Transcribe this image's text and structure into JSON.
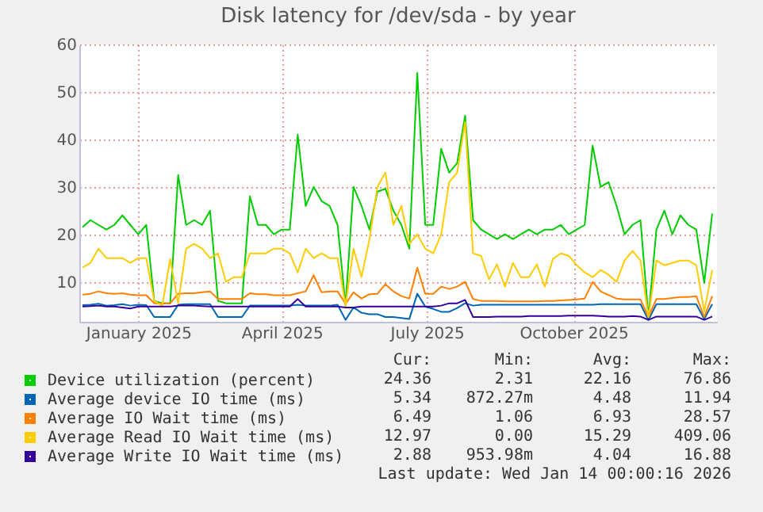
{
  "chart_data": {
    "type": "line",
    "title": "Disk latency for /dev/sda - by year",
    "x": [
      "2024-12-12",
      "2024-12-17",
      "2024-12-22",
      "2024-12-27",
      "2025-01-01",
      "2025-01-06",
      "2025-01-11",
      "2025-01-16",
      "2025-01-21",
      "2025-01-26",
      "2025-01-31",
      "2025-02-05",
      "2025-02-10",
      "2025-02-15",
      "2025-02-20",
      "2025-02-25",
      "2025-03-02",
      "2025-03-07",
      "2025-03-12",
      "2025-03-17",
      "2025-03-22",
      "2025-03-27",
      "2025-04-01",
      "2025-04-06",
      "2025-04-11",
      "2025-04-16",
      "2025-04-21",
      "2025-04-26",
      "2025-05-01",
      "2025-05-06",
      "2025-05-11",
      "2025-05-16",
      "2025-05-21",
      "2025-05-26",
      "2025-05-31",
      "2025-06-05",
      "2025-06-10",
      "2025-06-15",
      "2025-06-20",
      "2025-06-25",
      "2025-06-30",
      "2025-07-05",
      "2025-07-10",
      "2025-07-15",
      "2025-07-20",
      "2025-07-25",
      "2025-07-30",
      "2025-08-04",
      "2025-08-09",
      "2025-08-14",
      "2025-08-19",
      "2025-08-24",
      "2025-08-29",
      "2025-09-03",
      "2025-09-08",
      "2025-09-13",
      "2025-09-18",
      "2025-09-23",
      "2025-09-28",
      "2025-10-03",
      "2025-10-08",
      "2025-10-13",
      "2025-10-18",
      "2025-10-23",
      "2025-10-28",
      "2025-11-02",
      "2025-11-07",
      "2025-11-12",
      "2025-11-17",
      "2025-11-22",
      "2025-11-27",
      "2025-12-02",
      "2025-12-07",
      "2025-12-12",
      "2025-12-17",
      "2025-12-22",
      "2025-12-27",
      "2026-01-01",
      "2026-01-06",
      "2026-01-11"
    ],
    "series": [
      {
        "name": "Device utilization (percent)",
        "color": "#00cc00",
        "values": [
          21.5,
          23,
          22,
          21,
          22,
          24,
          22,
          20,
          22,
          6,
          5.5,
          5.5,
          32.5,
          22,
          23,
          22,
          25,
          6,
          5.5,
          5.5,
          5.5,
          28,
          22,
          22,
          20,
          21,
          21,
          41,
          26,
          30,
          27,
          26,
          22,
          5,
          30,
          26,
          21,
          29,
          29.6,
          25,
          22,
          17,
          54,
          22,
          22,
          38,
          33,
          35,
          45,
          23,
          21,
          20,
          19,
          20,
          19,
          20,
          21,
          20,
          21,
          21,
          22,
          20,
          21,
          22,
          38.7,
          30,
          31,
          26,
          20,
          22,
          23,
          2.6,
          21,
          25,
          20,
          24,
          22,
          21,
          9.8,
          24.4
        ]
      },
      {
        "name": "Average device IO time (ms)",
        "color": "#0066b3",
        "values": [
          5.1,
          5.2,
          5.4,
          5,
          5.1,
          5.3,
          5,
          5.2,
          5.1,
          2.6,
          2.6,
          2.6,
          5.2,
          5.3,
          5.3,
          5.3,
          5.3,
          2.6,
          2.6,
          2.6,
          2.6,
          5,
          5,
          5,
          5,
          5,
          5,
          5.2,
          5,
          5,
          5,
          5,
          5.2,
          2,
          4.6,
          3.5,
          3.2,
          3.2,
          2.6,
          2.6,
          2.4,
          2.2,
          7.5,
          4.8,
          4.3,
          3.7,
          3.7,
          4.5,
          5.5,
          5,
          5.2,
          5.2,
          5.2,
          5.2,
          5.2,
          5.2,
          5.2,
          5.2,
          5.2,
          5.2,
          5.2,
          5.2,
          5.2,
          5.2,
          5.2,
          5.3,
          5.3,
          5.3,
          5.3,
          5.3,
          5.3,
          2,
          5.3,
          5.3,
          5.3,
          5.3,
          5.3,
          5.3,
          2.2,
          5.3
        ]
      },
      {
        "name": "Average IO Wait time (ms)",
        "color": "#ff8000",
        "values": [
          7.3,
          7.5,
          8,
          7.6,
          7.5,
          7.6,
          7.3,
          7.2,
          7.2,
          5.5,
          5.5,
          5.5,
          7.5,
          7.6,
          7.6,
          7.8,
          8,
          6.4,
          6.4,
          6.4,
          6.4,
          7.6,
          7.4,
          7.4,
          7.2,
          7.2,
          7.2,
          7.6,
          8,
          11.4,
          7.8,
          8,
          8,
          5.4,
          7.8,
          6.5,
          7.4,
          7.5,
          9.5,
          8,
          7,
          6.5,
          13,
          7.5,
          7.5,
          9,
          8.5,
          9,
          10,
          6.4,
          6,
          6,
          6,
          5.9,
          5.9,
          5.9,
          5.9,
          5.9,
          6,
          6,
          6.1,
          6.2,
          6.3,
          6.5,
          10,
          8,
          7.2,
          6.5,
          6.3,
          6.3,
          6.3,
          2.6,
          6.4,
          6.4,
          6.6,
          6.8,
          6.8,
          7,
          2.6,
          7
        ]
      },
      {
        "name": "Average Read IO Wait time (ms)",
        "color": "#ffcc00",
        "values": [
          13,
          14,
          17,
          15,
          15,
          15,
          14,
          15,
          15,
          6,
          5,
          14.8,
          5.5,
          17,
          18,
          17,
          15,
          16,
          10,
          11,
          11,
          16,
          16,
          16,
          17,
          17,
          16,
          12,
          17,
          15,
          16,
          15,
          15,
          5,
          17,
          11,
          19,
          30,
          33,
          22,
          26,
          18,
          20,
          17,
          16,
          20,
          31,
          33,
          43.7,
          16,
          15.5,
          10.5,
          13.7,
          9,
          14,
          11,
          11,
          13.7,
          9,
          14.8,
          16,
          15.5,
          13.5,
          12,
          11,
          12.5,
          11.5,
          10,
          14.5,
          16.5,
          14.5,
          2.6,
          14.5,
          13.5,
          14,
          14.5,
          14.5,
          13.5,
          3.7,
          12.5
        ]
      },
      {
        "name": "Average Write IO Wait time (ms)",
        "color": "#330099",
        "values": [
          4.8,
          4.9,
          5,
          4.8,
          4.8,
          4.6,
          4.4,
          4.8,
          4.8,
          4.8,
          4.8,
          4.8,
          5,
          5,
          5,
          4.9,
          4.8,
          4.8,
          4.8,
          4.8,
          4.8,
          4.8,
          4.8,
          4.8,
          4.8,
          4.8,
          4.8,
          6.4,
          4.8,
          4.8,
          4.8,
          4.8,
          4.8,
          4.6,
          4.6,
          4.8,
          4.8,
          4.8,
          4.8,
          4.8,
          4.8,
          4.8,
          4.8,
          4.8,
          4.8,
          5,
          5.5,
          5.5,
          6.2,
          2.6,
          2.6,
          2.6,
          2.7,
          2.7,
          2.7,
          2.7,
          2.8,
          2.8,
          2.8,
          2.8,
          2.8,
          2.9,
          2.9,
          2.9,
          2.9,
          2.8,
          2.7,
          2.7,
          2.7,
          2.8,
          2.7,
          2,
          2.7,
          2.7,
          2.7,
          2.7,
          2.7,
          2.7,
          2,
          2.7
        ]
      }
    ],
    "xlim": [
      "2024-12-10",
      "2026-01-14"
    ],
    "xticks": [
      {
        "value": "2025-01-16",
        "label": "January 2025"
      },
      {
        "value": "2025-04-16",
        "label": "April 2025"
      },
      {
        "value": "2025-07-16",
        "label": "July 2025"
      },
      {
        "value": "2025-10-16",
        "label": "October 2025"
      }
    ],
    "ylim": [
      1.6,
      60
    ],
    "yticks": [
      10,
      20,
      30,
      40,
      50,
      60
    ],
    "grid": true,
    "legend": "bottom left",
    "line_style": "solid",
    "annotations": [
      "Cur:",
      "Min:",
      "Avg:",
      "Max:",
      "24.36",
      "2.31",
      "22.16",
      "76.86",
      "5.34",
      "872.27m",
      "4.48",
      "11.94",
      "6.49",
      "1.06",
      "6.93",
      "28.57",
      "12.97",
      "0.00",
      "15.29",
      "409.06",
      "2.88",
      "953.98m",
      "4.04",
      "16.88",
      "Last update: Wed Jan 14 00:00:16 2026"
    ]
  }
}
